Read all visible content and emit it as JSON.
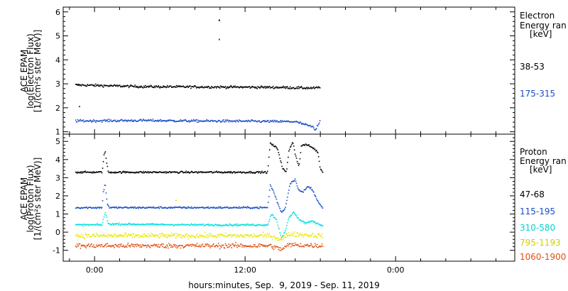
{
  "chart_data": [
    {
      "type": "scatter",
      "panel": "electron",
      "ylabel_lines": [
        "ACE EPAM",
        "log(Electron Flux)",
        "[1/(cm²s ster MeV)]"
      ],
      "ylim": [
        0.9,
        6.2
      ],
      "yticks": [
        1,
        2,
        3,
        4,
        5,
        6
      ],
      "legend_title": [
        "Electron",
        "Energy ran",
        "[keV]"
      ],
      "series": [
        {
          "name": "38-53",
          "color": "#000000",
          "base": 2.85,
          "points": [
            [
              -1.5,
              2.95
            ],
            [
              1,
              2.92
            ],
            [
              4,
              2.88
            ],
            [
              8,
              2.87
            ],
            [
              12,
              2.86
            ],
            [
              15,
              2.85
            ],
            [
              16.2,
              2.83
            ],
            [
              17.5,
              2.82
            ],
            [
              18,
              2.85
            ]
          ],
          "outliers": [
            [
              9.95,
              5.65
            ]
          ]
        },
        {
          "name": "175-315",
          "color": "#1a4ec8",
          "base": 1.45,
          "points": [
            [
              -1.5,
              1.45
            ],
            [
              4,
              1.47
            ],
            [
              8,
              1.45
            ],
            [
              12,
              1.44
            ],
            [
              16,
              1.42
            ],
            [
              17.4,
              1.2
            ],
            [
              17.6,
              1.05
            ],
            [
              18,
              1.5
            ]
          ],
          "outliers": [
            [
              9.95,
              4.85
            ],
            [
              -1.2,
              2.05
            ]
          ]
        }
      ]
    },
    {
      "type": "scatter",
      "panel": "proton",
      "ylabel_lines": [
        "ACE EPAM",
        "log(Proton Flux)",
        "[1/(cm²s ster MeV)]"
      ],
      "ylim": [
        -1.6,
        5.4
      ],
      "yticks": [
        -1,
        0,
        1,
        2,
        3,
        4,
        5
      ],
      "legend_title": [
        "Proton",
        "Energy ran",
        "[keV]"
      ],
      "series": [
        {
          "name": "47-68",
          "color": "#000000",
          "points": [
            [
              -1.5,
              3.3
            ],
            [
              0.6,
              3.3
            ],
            [
              0.75,
              4.2
            ],
            [
              0.85,
              4.5
            ],
            [
              0.95,
              3.9
            ],
            [
              1.1,
              3.3
            ],
            [
              8,
              3.3
            ],
            [
              13.8,
              3.3
            ],
            [
              14.0,
              4.9
            ],
            [
              14.6,
              4.6
            ],
            [
              15.0,
              3.5
            ],
            [
              15.3,
              3.3
            ],
            [
              15.5,
              4.5
            ],
            [
              15.8,
              5.0
            ],
            [
              16.0,
              4.3
            ],
            [
              16.3,
              3.6
            ],
            [
              16.5,
              4.8
            ],
            [
              17.0,
              4.8
            ],
            [
              17.5,
              4.6
            ],
            [
              17.8,
              4.4
            ],
            [
              18.0,
              3.5
            ],
            [
              18.2,
              3.3
            ]
          ]
        },
        {
          "name": "115-195",
          "color": "#1a4ec8",
          "points": [
            [
              -1.5,
              1.35
            ],
            [
              0.6,
              1.35
            ],
            [
              0.7,
              2.2
            ],
            [
              0.85,
              2.7
            ],
            [
              1.0,
              1.6
            ],
            [
              1.2,
              1.35
            ],
            [
              8,
              1.35
            ],
            [
              13.8,
              1.35
            ],
            [
              14.0,
              2.6
            ],
            [
              14.3,
              2.2
            ],
            [
              14.6,
              1.6
            ],
            [
              14.9,
              1.1
            ],
            [
              15.2,
              1.3
            ],
            [
              15.6,
              2.7
            ],
            [
              16.0,
              2.9
            ],
            [
              16.3,
              2.3
            ],
            [
              16.6,
              2.2
            ],
            [
              17.0,
              2.5
            ],
            [
              17.3,
              2.4
            ],
            [
              17.6,
              2.0
            ],
            [
              17.9,
              1.6
            ],
            [
              18.2,
              1.3
            ]
          ]
        },
        {
          "name": "310-580",
          "color": "#00e0e0",
          "points": [
            [
              -1.5,
              0.4
            ],
            [
              0.6,
              0.4
            ],
            [
              0.85,
              1.1
            ],
            [
              1.1,
              0.45
            ],
            [
              8,
              0.4
            ],
            [
              13.8,
              0.4
            ],
            [
              14.1,
              1.0
            ],
            [
              14.5,
              0.7
            ],
            [
              14.9,
              -0.3
            ],
            [
              15.2,
              0.0
            ],
            [
              15.5,
              0.8
            ],
            [
              15.9,
              1.1
            ],
            [
              16.3,
              0.7
            ],
            [
              16.8,
              0.5
            ],
            [
              17.4,
              0.6
            ],
            [
              18.0,
              0.4
            ],
            [
              18.2,
              0.4
            ]
          ]
        },
        {
          "name": "795-1193",
          "color": "#e8e800",
          "points": [
            [
              -1.5,
              -0.2
            ],
            [
              8,
              -0.2
            ],
            [
              14.0,
              -0.2
            ],
            [
              14.9,
              -0.4
            ],
            [
              15.5,
              -0.1
            ],
            [
              18.2,
              -0.2
            ]
          ],
          "outliers": [
            [
              6.5,
              1.75
            ]
          ]
        },
        {
          "name": "1060-1900",
          "color": "#e05010",
          "points": [
            [
              -1.5,
              -0.75
            ],
            [
              8,
              -0.75
            ],
            [
              14.0,
              -0.75
            ],
            [
              14.9,
              -0.95
            ],
            [
              15.5,
              -0.7
            ],
            [
              18.2,
              -0.75
            ]
          ]
        }
      ]
    }
  ],
  "x_axis": {
    "xlim": [
      -2.5,
      33.5
    ],
    "ticks": [
      {
        "pos": 0,
        "label": "0:00"
      },
      {
        "pos": 12,
        "label": "12:00"
      },
      {
        "pos": 24,
        "label": "0:00"
      }
    ],
    "minor_ticks": [
      -2,
      2,
      4,
      6,
      8,
      10,
      14,
      16,
      18,
      20,
      22,
      26,
      28,
      30,
      32
    ],
    "xlabel": "hours:minutes, Sep.  9, 2019 - Sep. 11, 2019"
  }
}
